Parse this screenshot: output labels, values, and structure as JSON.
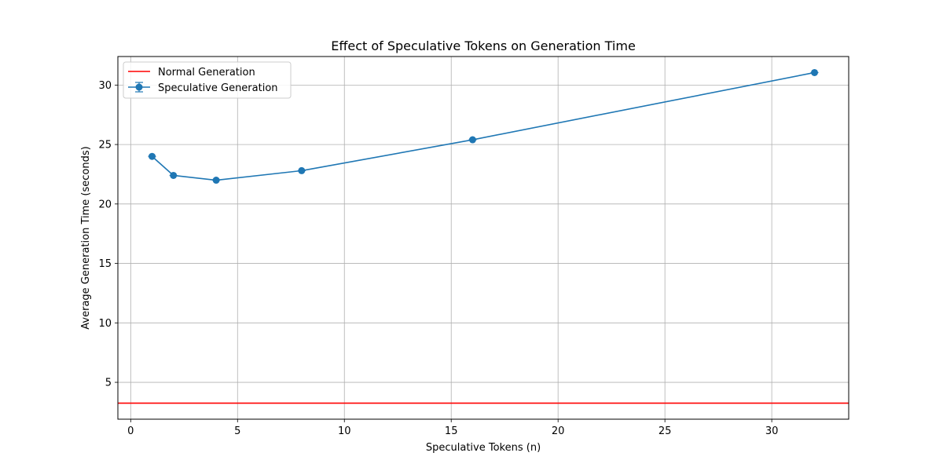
{
  "chart_data": {
    "type": "line",
    "title": "Effect of Speculative Tokens on Generation Time",
    "xlabel": "Speculative Tokens (n)",
    "ylabel": "Average Generation Time (seconds)",
    "xlim": [
      -0.6,
      33.6
    ],
    "ylim": [
      1.9,
      32.4
    ],
    "xticks": [
      0,
      5,
      10,
      15,
      20,
      25,
      30
    ],
    "yticks": [
      5,
      10,
      15,
      20,
      25,
      30
    ],
    "grid": true,
    "legend_position": "top-left",
    "series": [
      {
        "name": "Speculative Generation",
        "color": "#1f77b4",
        "marker": "circle",
        "error_bars": true,
        "x": [
          1,
          2,
          4,
          8,
          16,
          32
        ],
        "y": [
          24.0,
          22.4,
          22.0,
          22.8,
          25.4,
          31.05
        ]
      }
    ],
    "reference_lines": [
      {
        "name": "Normal Generation",
        "orientation": "horizontal",
        "color": "#ff0000",
        "y": 3.25
      }
    ]
  }
}
